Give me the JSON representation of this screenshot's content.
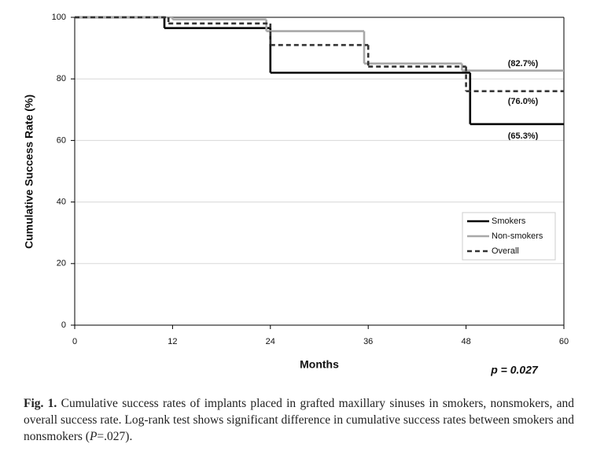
{
  "chart_data": {
    "type": "step",
    "xlabel": "Months",
    "ylabel": "Cumulative Success Rate (%)",
    "xlim": [
      0,
      60
    ],
    "xticks": [
      0,
      12,
      24,
      36,
      48,
      60
    ],
    "ylim": [
      0,
      100
    ],
    "yticks": [
      0,
      20,
      40,
      60,
      80,
      100
    ],
    "grid": true,
    "legend": "lower right",
    "series": [
      {
        "name": "Smokers",
        "color": "#000000",
        "dash": "solid",
        "x": [
          0,
          11,
          24,
          48.5,
          60
        ],
        "values": [
          100,
          96.5,
          82,
          65.3,
          65.3
        ]
      },
      {
        "name": "Non-smokers",
        "color": "#a8a8a8",
        "dash": "solid",
        "x": [
          0,
          12,
          23.5,
          35.5,
          47.5,
          60
        ],
        "values": [
          100,
          99.3,
          95.5,
          85,
          82.7,
          82.7
        ]
      },
      {
        "name": "Overall",
        "color": "#333333",
        "dash": "dashed",
        "x": [
          0,
          11.5,
          24,
          36,
          48,
          60
        ],
        "values": [
          100,
          98,
          91,
          84,
          76,
          76
        ]
      }
    ],
    "annotations": [
      "(82.7%)",
      "(76.0%)",
      "(65.3%)",
      "p = 0.027"
    ]
  },
  "caption": {
    "label": "Fig. 1.",
    "text": "Cumulative success rates of implants placed in grafted maxillary sinuses in smokers, nonsmokers, and overall success rate. Log-rank test shows significant difference in cumulative success rates between smokers and nonsmokers (",
    "italic": "P",
    "end": "=.027)."
  }
}
